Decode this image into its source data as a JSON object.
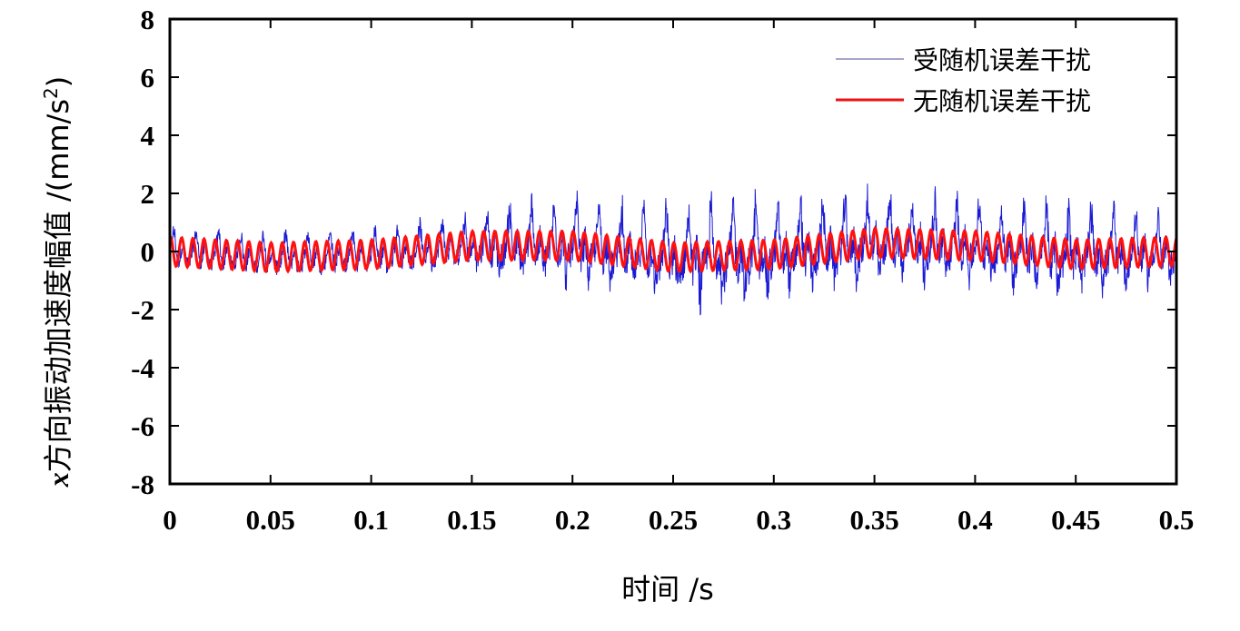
{
  "chart_data": {
    "type": "line",
    "title": "",
    "xlabel": "时间 /s",
    "ylabel_prefix": "x",
    "ylabel": "方向振动加速度幅值 /(mm/s",
    "ylabel_sup": "2",
    "ylabel_suffix": ")",
    "xlim": [
      0,
      0.5
    ],
    "ylim": [
      -8,
      8
    ],
    "xticks": [
      "0",
      "0.05",
      "0.1",
      "0.15",
      "0.2",
      "0.25",
      "0.3",
      "0.35",
      "0.4",
      "0.45",
      "0.5"
    ],
    "yticks": [
      "-8",
      "-6",
      "-4",
      "-2",
      "0",
      "2",
      "4",
      "6",
      "8"
    ],
    "grid": false,
    "legend_position": "top-right",
    "series": [
      {
        "name": "受随机误差干扰",
        "color": "#1a1ad6",
        "description_model": {
          "carrier_frequency_hz": 180,
          "envelope_t": [
            0,
            0.05,
            0.1,
            0.15,
            0.17,
            0.2,
            0.25,
            0.28,
            0.3,
            0.35,
            0.4,
            0.45,
            0.5
          ],
          "envelope_amp": [
            0.8,
            0.9,
            1.0,
            1.1,
            2.0,
            1.9,
            2.3,
            2.6,
            2.4,
            2.2,
            2.0,
            2.3,
            1.5
          ],
          "peak_max": 3.5,
          "peak_min": -3.1
        }
      },
      {
        "name": "无随机误差干扰",
        "color": "#ff1010",
        "description_model": {
          "frequency_hz": 180,
          "amplitude": 0.5,
          "offset_t": [
            0,
            0.05,
            0.1,
            0.15,
            0.2,
            0.25,
            0.3,
            0.35,
            0.4,
            0.45,
            0.5
          ],
          "offset": [
            0.0,
            -0.2,
            -0.1,
            0.2,
            0.2,
            -0.2,
            -0.1,
            0.3,
            0.2,
            -0.1,
            0.0
          ]
        }
      }
    ]
  }
}
